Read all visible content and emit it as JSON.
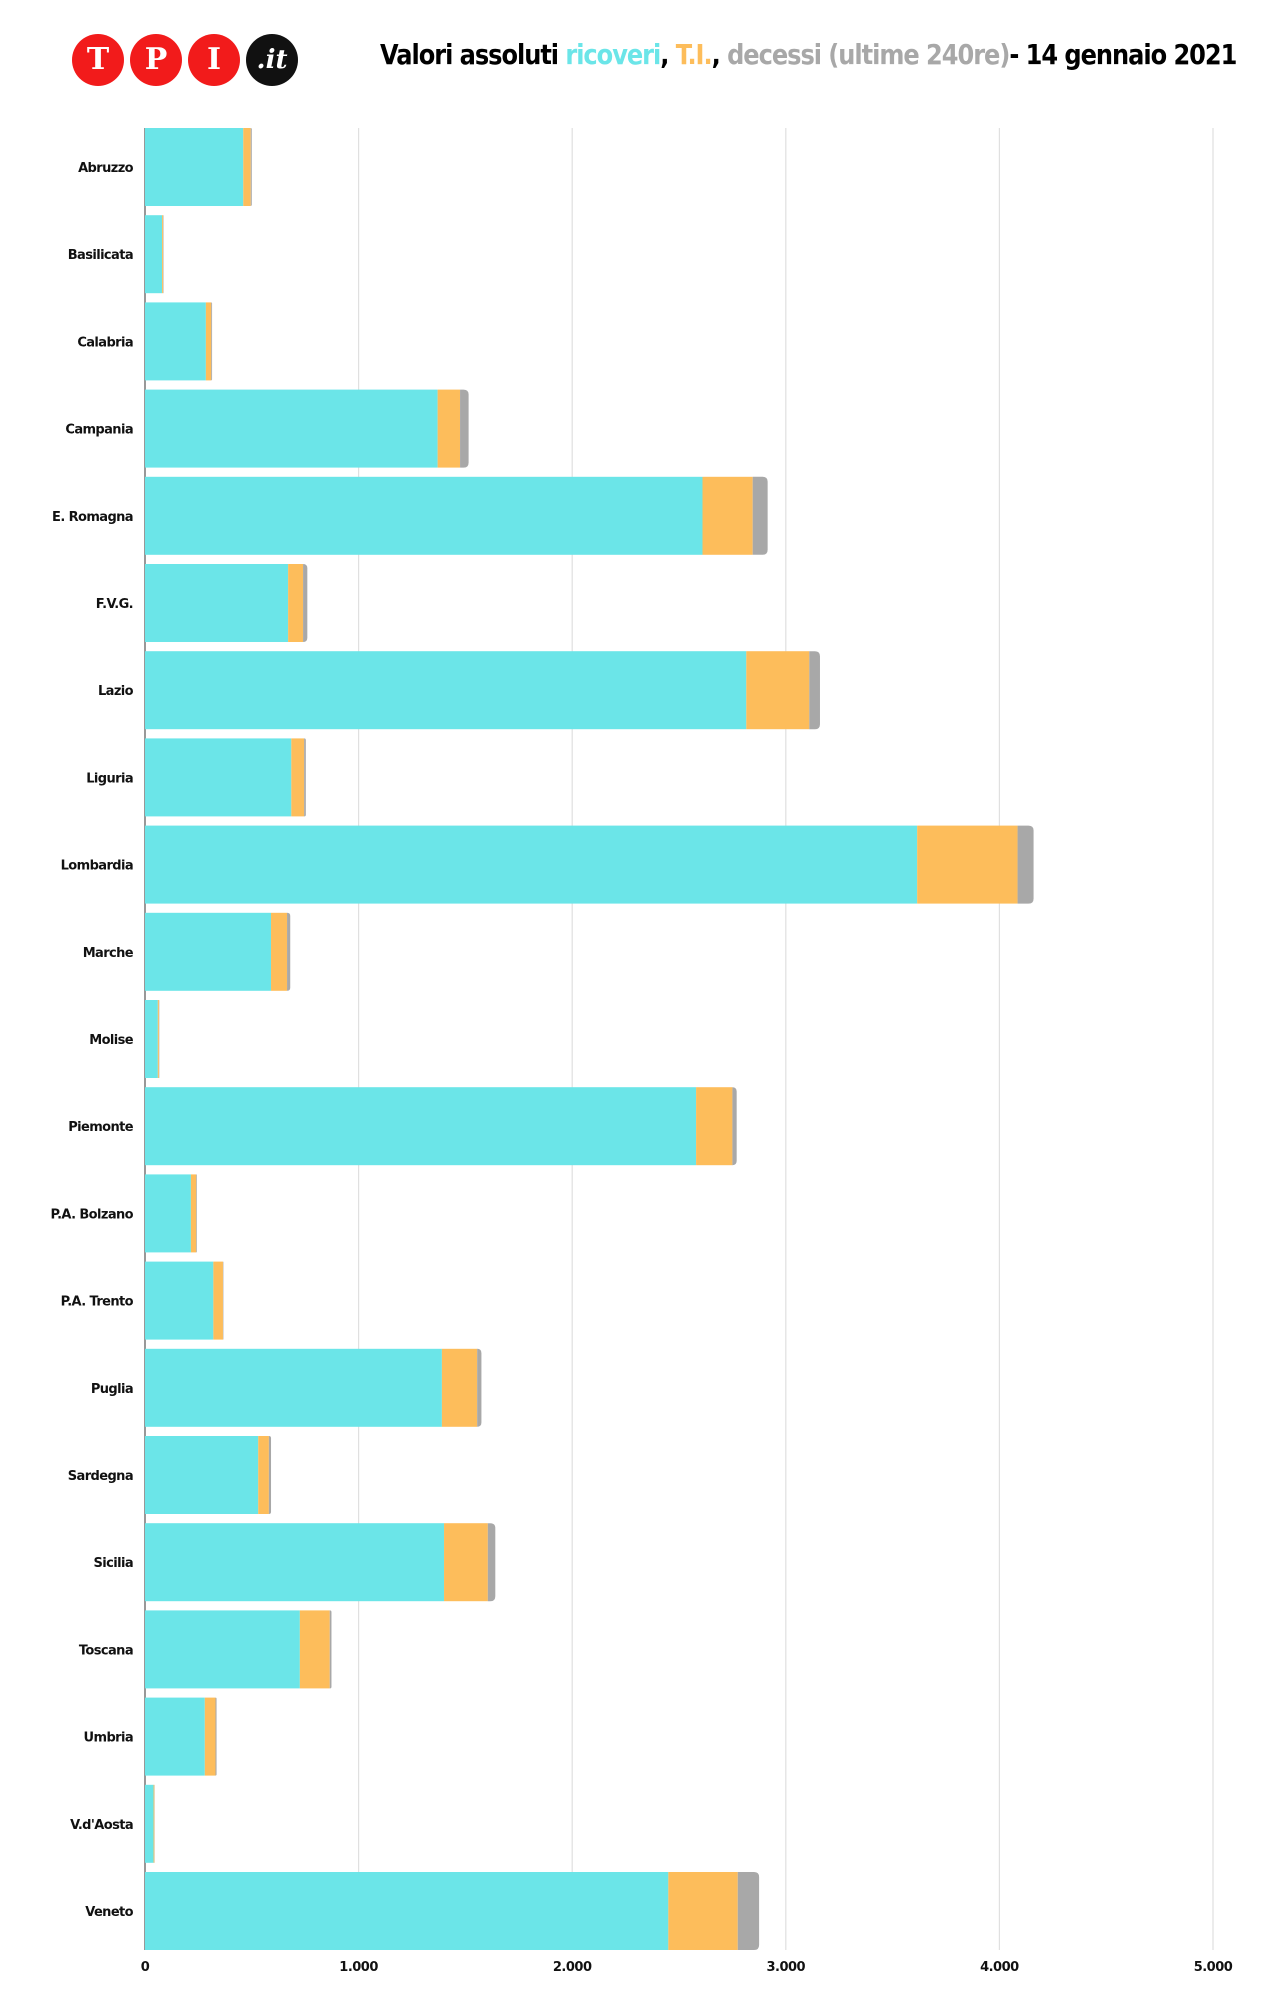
{
  "brand": {
    "logo_letters": [
      "T",
      "P",
      "I",
      ".it"
    ],
    "logo_color": "#f21b1b"
  },
  "header": {
    "title_prefix": "Valori assoluti ",
    "title_ricoveri": "ricoveri",
    "title_sep1": ", ",
    "title_ti": "T.I.",
    "title_sep2": ", ",
    "title_decessi": "decessi (ultime 240re)",
    "title_suffix": "- 14 gennaio 2021"
  },
  "chart_data": {
    "type": "bar",
    "orientation": "horizontal",
    "stacked": true,
    "categories": [
      "Abruzzo",
      "Basilicata",
      "Calabria",
      "Campania",
      "E. Romagna",
      "F.V.G.",
      "Lazio",
      "Liguria",
      "Lombardia",
      "Marche",
      "Molise",
      "Piemonte",
      "P.A. Bolzano",
      "P.A. Trento",
      "Puglia",
      "Sardegna",
      "Sicilia",
      "Toscana",
      "Umbria",
      "V.d'Aosta",
      "Veneto"
    ],
    "series": [
      {
        "name": "ricoveri",
        "color": "#6be5e8",
        "values": [
          460,
          80,
          285,
          1370,
          2610,
          670,
          2815,
          685,
          3615,
          590,
          60,
          2580,
          215,
          320,
          1390,
          530,
          1400,
          725,
          280,
          40,
          2450
        ]
      },
      {
        "name": "T.I.",
        "color": "#fdbd5b",
        "values": [
          35,
          5,
          25,
          105,
          235,
          70,
          295,
          60,
          470,
          75,
          5,
          170,
          25,
          45,
          165,
          50,
          205,
          140,
          50,
          4,
          325
        ]
      },
      {
        "name": "decessi (ultime 240re)",
        "color": "#a8a8a8",
        "values": [
          5,
          2,
          4,
          40,
          70,
          20,
          50,
          8,
          75,
          15,
          2,
          20,
          3,
          2,
          20,
          10,
          35,
          8,
          5,
          1,
          100
        ]
      }
    ],
    "xlim": [
      0,
      5000
    ],
    "xticks": [
      0,
      1000,
      2000,
      3000,
      4000,
      5000
    ],
    "xtick_labels": [
      "0",
      "1.000",
      "2.000",
      "3.000",
      "4.000",
      "5.000"
    ],
    "grid": true
  }
}
